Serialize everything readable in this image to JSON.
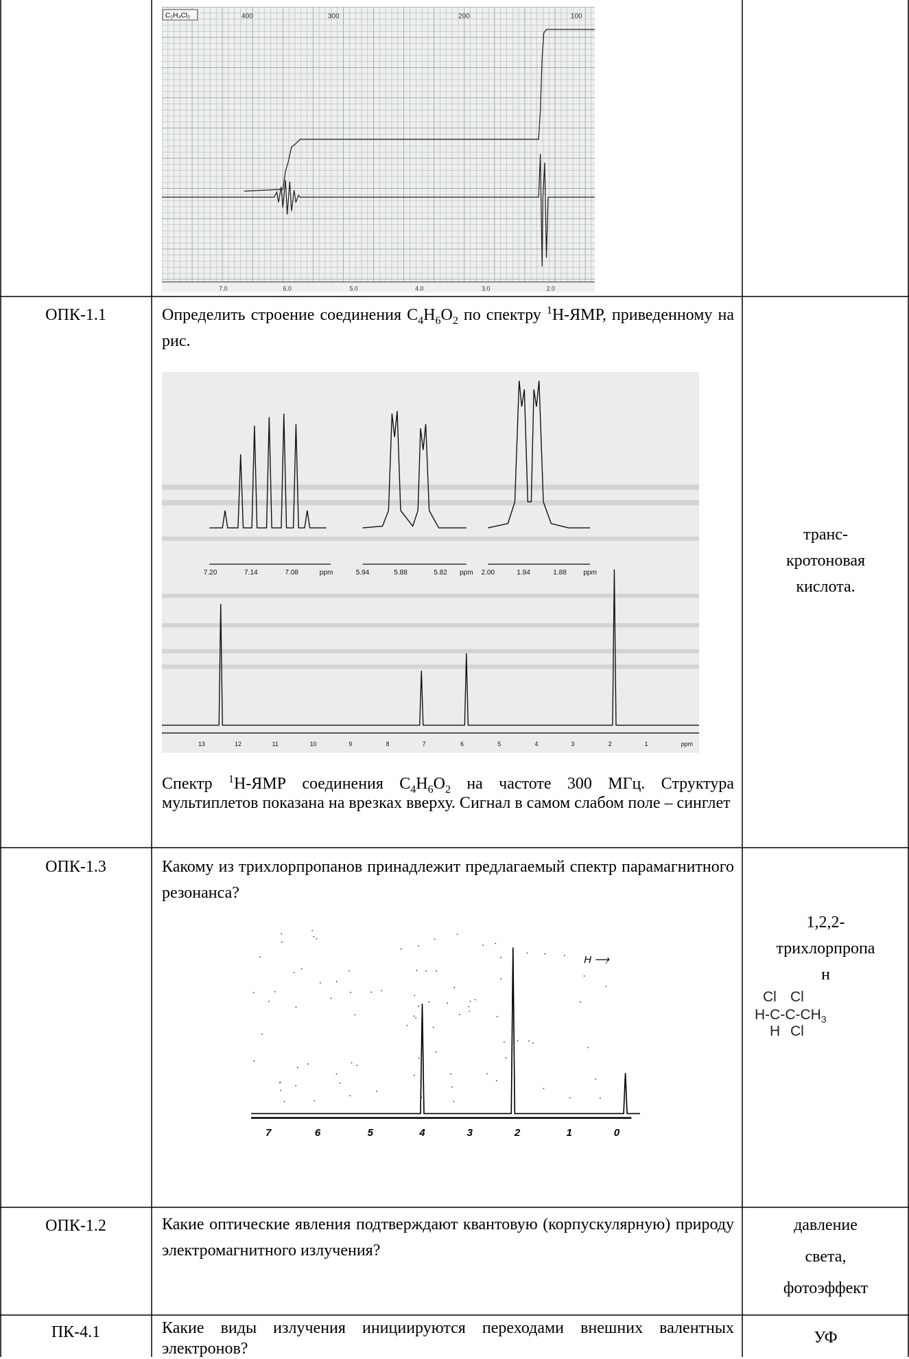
{
  "table": {
    "rows": [
      {
        "figure": {
          "label": "C₂H₄Cl₂",
          "top_labels": [
            "400",
            "300",
            "200",
            "100"
          ],
          "bottom_labels": [
            "7.0",
            "6.0",
            "5.0",
            "4.0",
            "3.0",
            "2.0"
          ]
        }
      },
      {
        "code": "ОПК-1.1",
        "question": [
          "Определить строение соединения C",
          "4",
          "H",
          "6",
          "O",
          "2",
          " по спектру ",
          "1",
          "H-ЯМР, приведенному на рис."
        ],
        "figure": {
          "inset_labels": [
            "7.20",
            "7.14",
            "7.08",
            "ppm",
            "5.94",
            "5.88",
            "5.82",
            "ppm",
            "2.00",
            "1.94",
            "1.88",
            "ppm"
          ],
          "bottom_labels": [
            "13",
            "12",
            "11",
            "10",
            "9",
            "8",
            "7",
            "6",
            "5",
            "4",
            "3",
            "2",
            "1",
            "ppm"
          ]
        },
        "caption": [
          "Спектр ",
          "1",
          "H-ЯМР соединения C",
          "4",
          "H",
          "6",
          "O",
          "2",
          " на частоте 300 МГц. Структура мультиплетов показана на врезках вверху. Сигнал в самом слабом поле – синглет"
        ],
        "answer": [
          "транс-",
          "кротоновая",
          "кислота."
        ]
      },
      {
        "code": "ОПК-1.3",
        "question": [
          "Какому из трихлорпропанов принадлежит предлагаемый спектр парамагнитного резонанса?"
        ],
        "figure": {
          "field_label": "H ⟶",
          "bottom_labels": [
            "7",
            "6",
            "5",
            "4",
            "3",
            "2",
            "1",
            "0"
          ]
        },
        "answer": [
          "1,2,2-",
          "трихлорпропа",
          "н"
        ],
        "structure": {
          "top": [
            "Cl",
            "Cl"
          ],
          "middle": "H-C-C-CH",
          "subscript": "3",
          "bottom": [
            "H",
            "Cl"
          ]
        }
      },
      {
        "code": "ОПК-1.2",
        "question": [
          "Какие оптические явления подтверждают квантовую (корпускулярную) природу электромагнитного излучения?"
        ],
        "answer": [
          "давление",
          "света,",
          "фотоэффект"
        ]
      },
      {
        "code": "ПК-4.1",
        "question": [
          "Какие виды излучения инициируются переходами внешних валентных электронов?"
        ],
        "answer": [
          "УФ"
        ]
      }
    ]
  }
}
